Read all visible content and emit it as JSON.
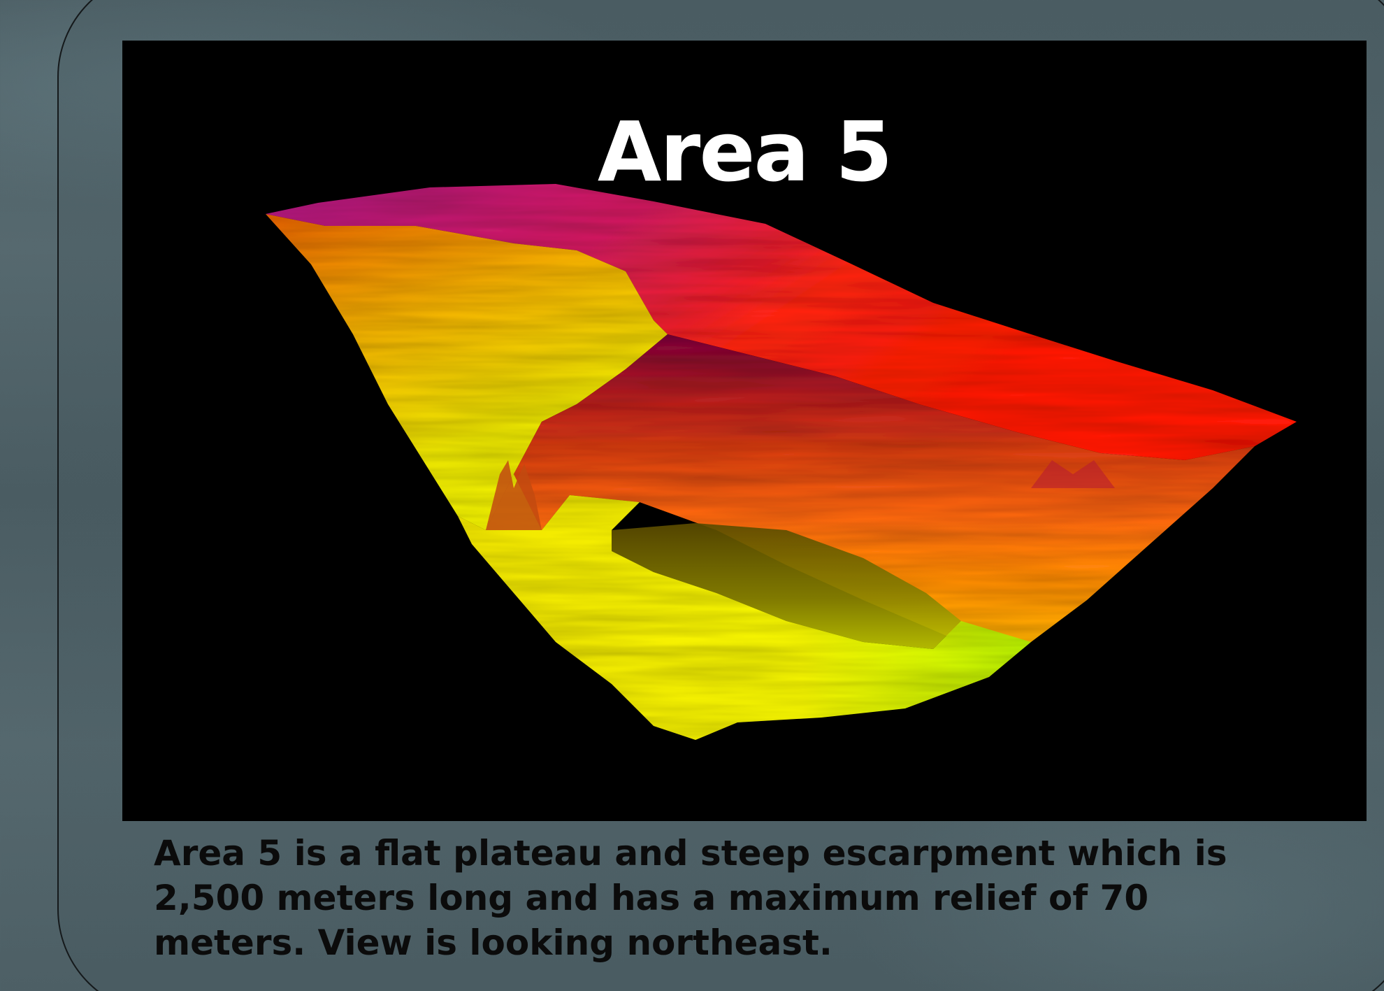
{
  "slide": {
    "title": "Area 5",
    "caption": "Area 5 is a flat plateau and steep escarpment which is 2,500 meters long and has a maximum relief of 70 meters. View is looking northeast.",
    "image_colors": {
      "plateau_top": "#ff1a1a",
      "plateau_magenta": "#c01e7a",
      "slope_orange": "#ff7a10",
      "basin_yellow": "#f2f000",
      "basin_shadow": "#6f6a00"
    }
  }
}
